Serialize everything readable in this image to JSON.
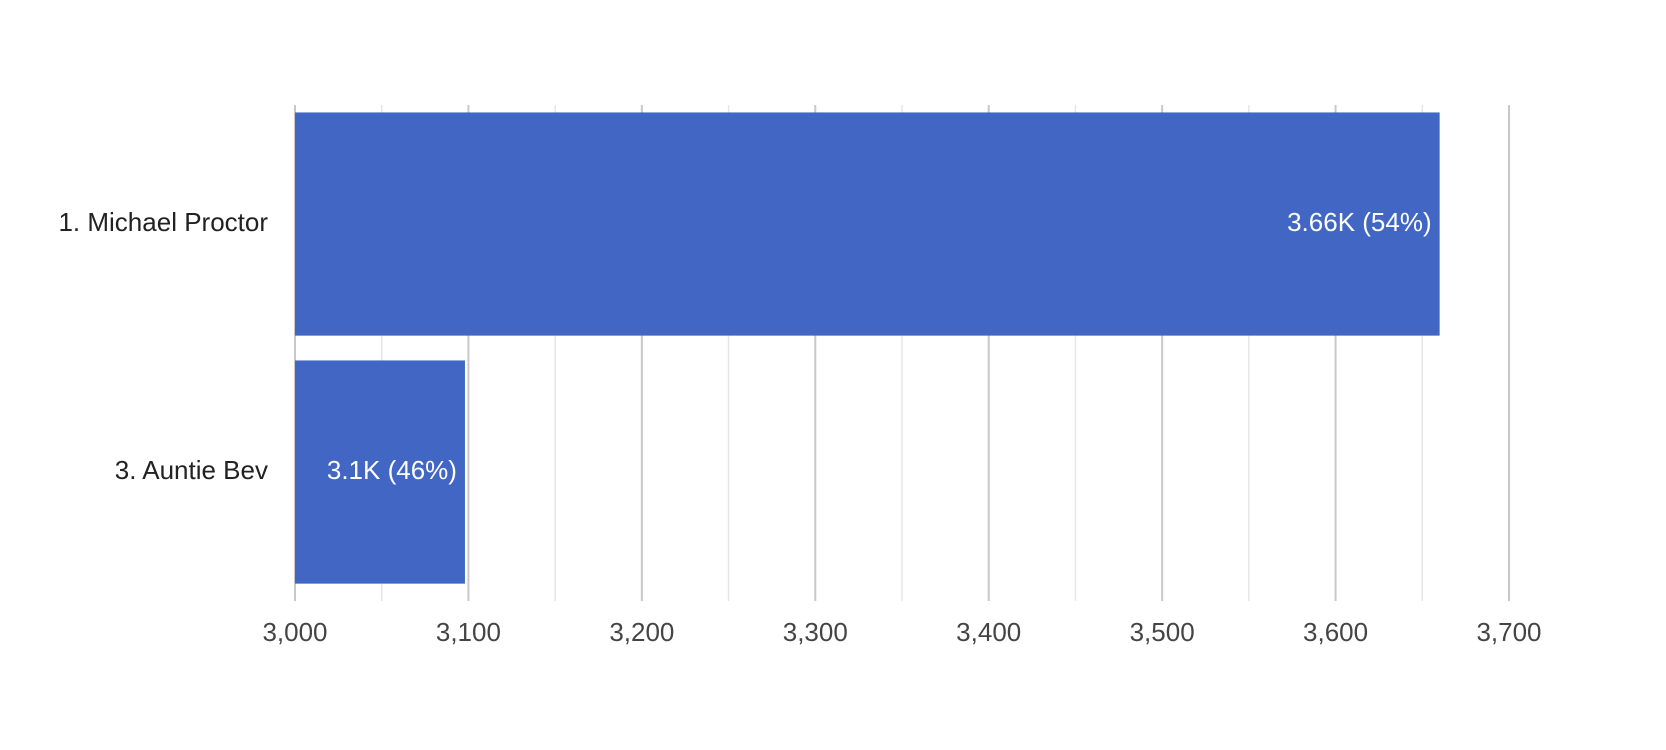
{
  "chart_data": {
    "type": "hbar",
    "categories": [
      "1. Michael Proctor",
      "3. Auntie Bev"
    ],
    "values": [
      3660,
      3098
    ],
    "value_labels": [
      "3.66K (54%)",
      "3.1K (46%)"
    ],
    "color": "#4266c4",
    "xlim": [
      3000,
      3700
    ],
    "xticks": [
      {
        "value": 3000,
        "label": "3,000"
      },
      {
        "value": 3100,
        "label": "3,100"
      },
      {
        "value": 3200,
        "label": "3,200"
      },
      {
        "value": 3300,
        "label": "3,300"
      },
      {
        "value": 3400,
        "label": "3,400"
      },
      {
        "value": 3500,
        "label": "3,500"
      },
      {
        "value": 3600,
        "label": "3,600"
      },
      {
        "value": 3700,
        "label": "3,700"
      }
    ],
    "minor_xticks": [
      3050,
      3150,
      3250,
      3350,
      3450,
      3550,
      3650
    ],
    "grid": true
  }
}
